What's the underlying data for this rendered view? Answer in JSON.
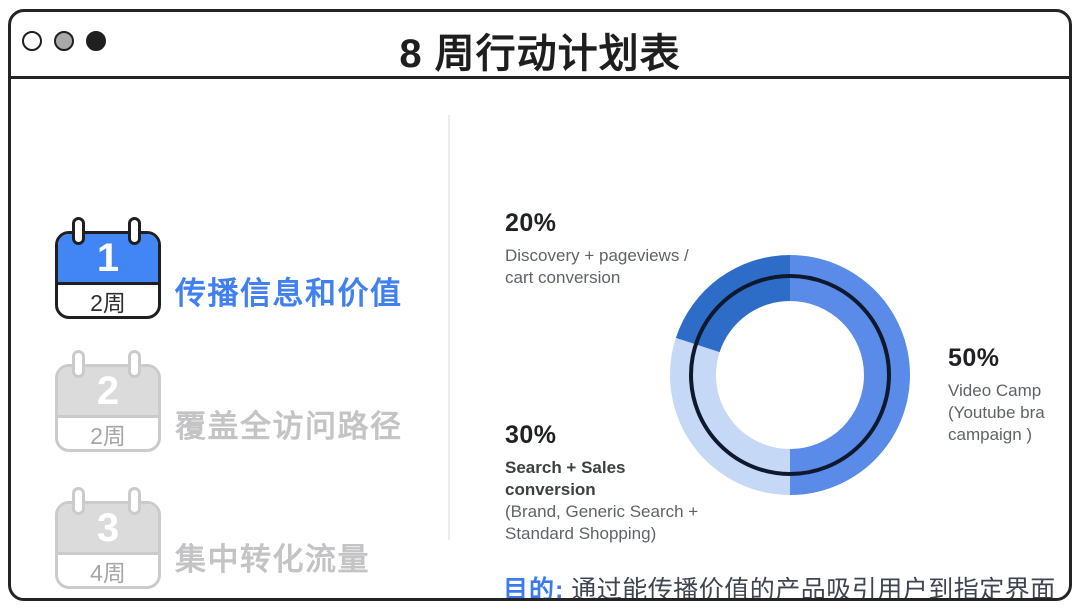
{
  "window": {
    "title": "8 周行动计划表",
    "traffic_lights": [
      {
        "name": "outline-dot",
        "fill": "#FFFFFF",
        "border": "#1F1F1F"
      },
      {
        "name": "gray-dot",
        "fill": "#A9A9A9",
        "border": "#1F1F1F"
      },
      {
        "name": "black-dot",
        "fill": "#1F1F1F",
        "border": "#1F1F1F"
      }
    ]
  },
  "plan": {
    "items": [
      {
        "number": "1",
        "duration": "2周",
        "label": "传播信息和价值",
        "state": "active"
      },
      {
        "number": "2",
        "duration": "2周",
        "label": "覆盖全访问路径",
        "state": "inactive"
      },
      {
        "number": "3",
        "duration": "4周",
        "label": "集中转化流量",
        "state": "inactive"
      }
    ]
  },
  "chart_data": {
    "type": "pie",
    "variant": "donut",
    "direction": "clockwise",
    "start_angle_deg": 0,
    "inner_ring_color": "#0E192E",
    "slices": [
      {
        "value": 50,
        "pct_label": "50%",
        "color": "#5A8BE8",
        "desc_lines": [
          "Video Camp",
          "(Youtube bra",
          "campaign )"
        ]
      },
      {
        "value": 30,
        "pct_label": "30%",
        "color": "#C5D8F5",
        "desc_strong_lines": [
          "Search + Sales",
          "conversion"
        ],
        "desc_lines": [
          "(Brand, Generic Search +",
          "Standard Shopping)"
        ]
      },
      {
        "value": 20,
        "pct_label": "20%",
        "color": "#2E6DC7",
        "desc_lines": [
          "Discovery + pageviews /",
          "cart conversion"
        ]
      }
    ]
  },
  "purpose": {
    "prefix": "目的:",
    "text": "通过能传播价值的产品吸引用户到指定界面"
  },
  "colors": {
    "accent_blue": "#4285F4",
    "active_label": "#4080F0",
    "inactive_gray": "#C4C4C6"
  }
}
